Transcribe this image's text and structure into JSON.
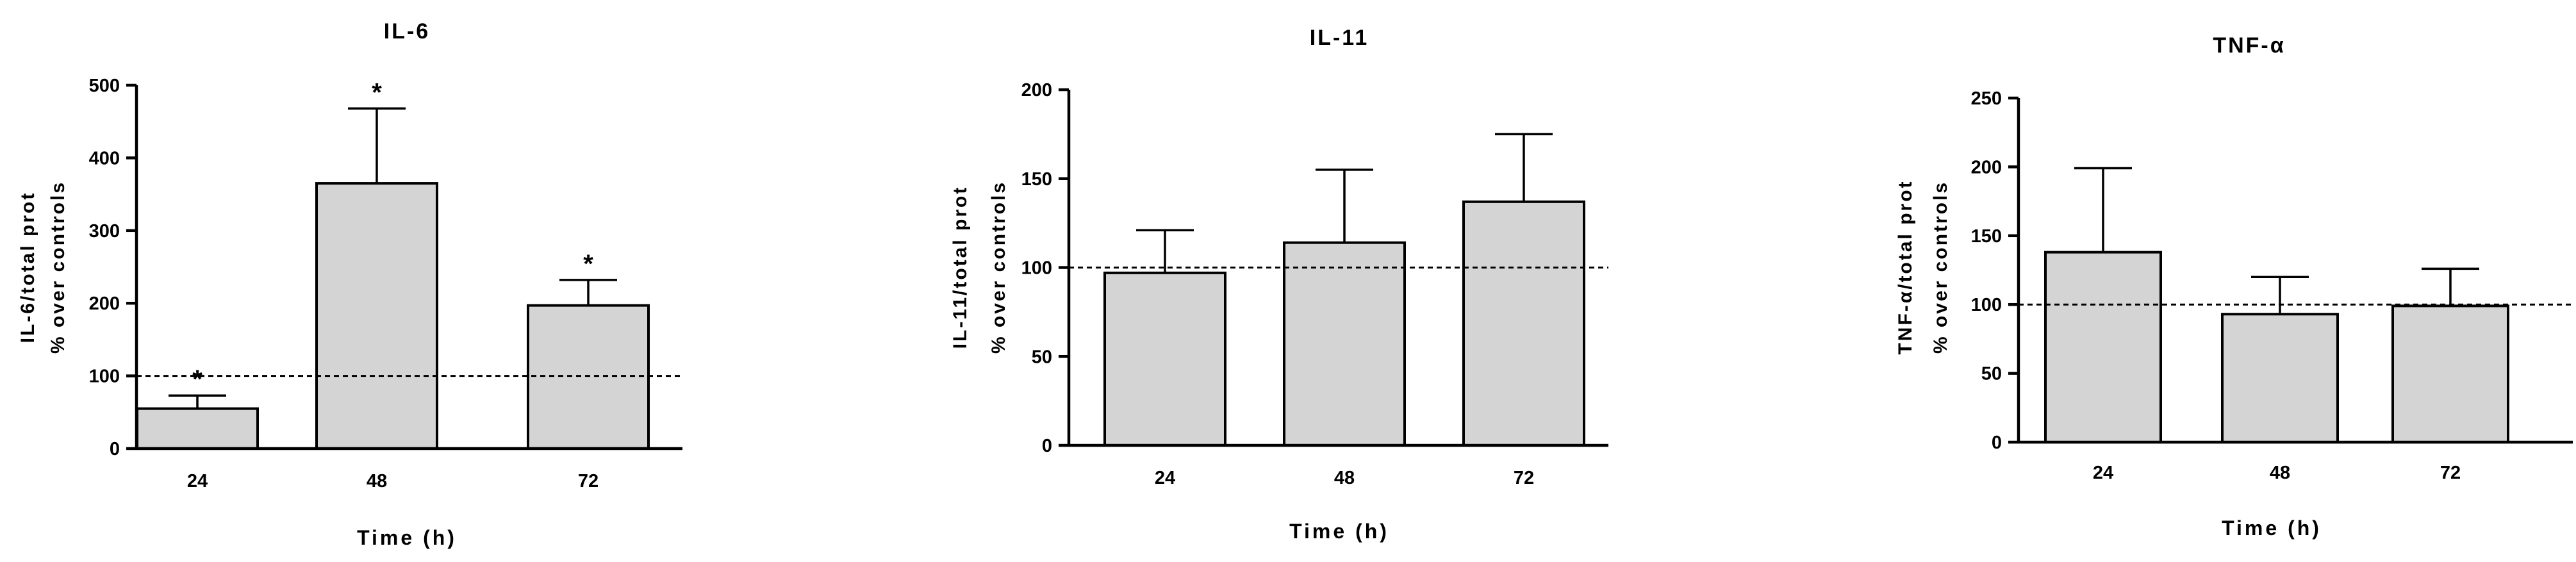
{
  "chart_data": [
    {
      "type": "bar",
      "title": "IL-6",
      "ylabel_line1": "IL-6/total prot",
      "ylabel_line2": "% over controls",
      "xlabel": "Time (h)",
      "categories": [
        "24",
        "48",
        "72"
      ],
      "values": [
        55,
        365,
        197
      ],
      "error": [
        18,
        103,
        35
      ],
      "significance": [
        "*",
        "*",
        "*"
      ],
      "ylim": [
        0,
        500
      ],
      "yticks": [
        0,
        100,
        200,
        300,
        400,
        500
      ],
      "reference_line": 100
    },
    {
      "type": "bar",
      "title": "IL-11",
      "ylabel_line1": "IL-11/total prot",
      "ylabel_line2": "% over controls",
      "xlabel": "Time (h)",
      "categories": [
        "24",
        "48",
        "72"
      ],
      "values": [
        97,
        114,
        137
      ],
      "error": [
        24,
        41,
        38
      ],
      "significance": [
        "",
        "",
        ""
      ],
      "ylim": [
        0,
        200
      ],
      "yticks": [
        0,
        50,
        100,
        150,
        200
      ],
      "reference_line": 100
    },
    {
      "type": "bar",
      "title": "TNF-α",
      "ylabel_line1": "TNF-α/total prot",
      "ylabel_line2": "% over controls",
      "xlabel": "Time (h)",
      "categories": [
        "24",
        "48",
        "72"
      ],
      "values": [
        138,
        93,
        99
      ],
      "error": [
        61,
        27,
        27
      ],
      "significance": [
        "",
        "",
        ""
      ],
      "ylim": [
        0,
        250
      ],
      "yticks": [
        0,
        50,
        100,
        150,
        200,
        250
      ],
      "reference_line": 100
    }
  ]
}
